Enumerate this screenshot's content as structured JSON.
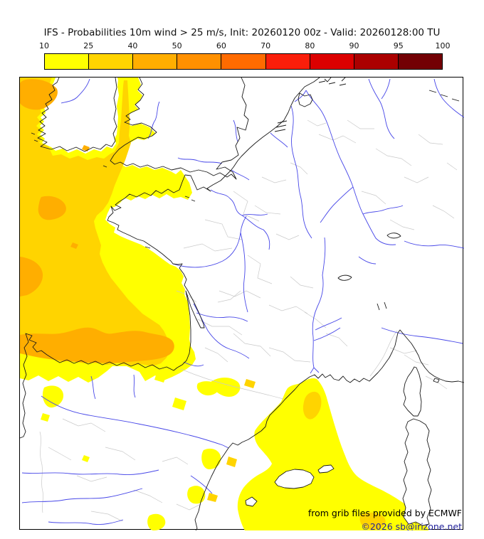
{
  "title": "IFS - Probabilities 10m wind > 25 m/s, Init: 20260120 00z - Valid: 20260128:00 TU",
  "colorbar": {
    "tick_labels": [
      "10",
      "25",
      "40",
      "50",
      "60",
      "70",
      "80",
      "90",
      "95",
      "100"
    ],
    "segments": [
      {
        "range": "10-25",
        "color": "#FFFF00"
      },
      {
        "range": "25-40",
        "color": "#FFD400"
      },
      {
        "range": "40-50",
        "color": "#FFAE00"
      },
      {
        "range": "50-60",
        "color": "#FF9000"
      },
      {
        "range": "60-70",
        "color": "#FF6B00"
      },
      {
        "range": "70-80",
        "color": "#FA1E0A"
      },
      {
        "range": "80-90",
        "color": "#DC0000"
      },
      {
        "range": "90-95",
        "color": "#AB0000"
      },
      {
        "range": "95-100",
        "color": "#730004"
      }
    ]
  },
  "map": {
    "fill_colors": {
      "p10_25": "#FFFF00",
      "p25_40": "#FFD400",
      "p40_50": "#FFAE00"
    },
    "line_colors": {
      "coast": "#1a1a1a",
      "river": "#4747e8",
      "admin": "#c9c9c9"
    },
    "attribution_line1": "from grib files provided by ECMWF",
    "attribution_line2": "©2026 sb@irizone.net",
    "attribution_line2_color": "#22229b"
  }
}
